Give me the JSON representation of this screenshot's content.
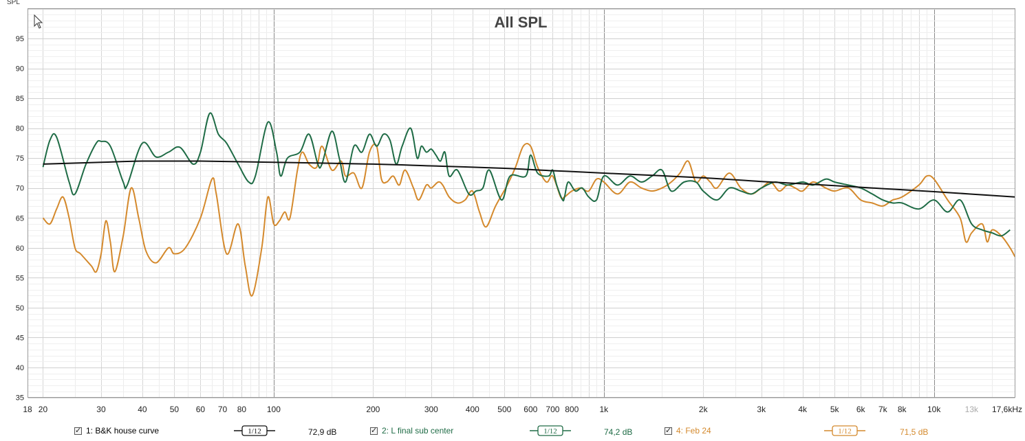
{
  "chart_data": {
    "type": "line",
    "title": "All SPL",
    "ylabel": "SPL",
    "x_unit_label": "17,6kHz",
    "xscale": "log",
    "xlim": [
      18,
      17600
    ],
    "ylim": [
      35,
      100
    ],
    "grid": true,
    "y_ticks": [
      35,
      40,
      45,
      50,
      55,
      60,
      65,
      70,
      75,
      80,
      85,
      90,
      95
    ],
    "x_ticks": [
      {
        "v": 18,
        "label": "18"
      },
      {
        "v": 20,
        "label": "20"
      },
      {
        "v": 30,
        "label": "30"
      },
      {
        "v": 40,
        "label": "40"
      },
      {
        "v": 50,
        "label": "50"
      },
      {
        "v": 60,
        "label": "60"
      },
      {
        "v": 70,
        "label": "70"
      },
      {
        "v": 80,
        "label": "80"
      },
      {
        "v": 100,
        "label": "100"
      },
      {
        "v": 200,
        "label": "200"
      },
      {
        "v": 300,
        "label": "300"
      },
      {
        "v": 400,
        "label": "400"
      },
      {
        "v": 500,
        "label": "500"
      },
      {
        "v": 600,
        "label": "600"
      },
      {
        "v": 700,
        "label": "700"
      },
      {
        "v": 800,
        "label": "800"
      },
      {
        "v": 1000,
        "label": "1k"
      },
      {
        "v": 2000,
        "label": "2k"
      },
      {
        "v": 3000,
        "label": "3k"
      },
      {
        "v": 4000,
        "label": "4k"
      },
      {
        "v": 5000,
        "label": "5k"
      },
      {
        "v": 6000,
        "label": "6k"
      },
      {
        "v": 7000,
        "label": "7k"
      },
      {
        "v": 8000,
        "label": "8k"
      },
      {
        "v": 10000,
        "label": "10k"
      },
      {
        "v": 13000,
        "label": "13k",
        "faint": true
      }
    ],
    "series": [
      {
        "name": "1: B&K house curve",
        "color": "#111111",
        "smoothing": "1/12",
        "level": "72,9 dB",
        "points": [
          [
            20,
            74
          ],
          [
            30,
            74.3
          ],
          [
            40,
            74.5
          ],
          [
            60,
            74.5
          ],
          [
            100,
            74.3
          ],
          [
            200,
            74
          ],
          [
            300,
            73.7
          ],
          [
            500,
            73.3
          ],
          [
            700,
            72.9
          ],
          [
            1000,
            72.5
          ],
          [
            2000,
            71.7
          ],
          [
            3000,
            71.1
          ],
          [
            5000,
            70.4
          ],
          [
            7000,
            69.9
          ],
          [
            10000,
            69.4
          ],
          [
            17600,
            68.5
          ]
        ]
      },
      {
        "name": "2: L final  sub center",
        "color": "#1e6b45",
        "smoothing": "1/12",
        "level": "74,2 dB",
        "points": [
          [
            20,
            73.5
          ],
          [
            21,
            78
          ],
          [
            22,
            78.5
          ],
          [
            24,
            71
          ],
          [
            25,
            69
          ],
          [
            27,
            74
          ],
          [
            29,
            77.5
          ],
          [
            30,
            77.8
          ],
          [
            32,
            77
          ],
          [
            35,
            71
          ],
          [
            36,
            70.5
          ],
          [
            40,
            77.5
          ],
          [
            44,
            75.2
          ],
          [
            48,
            76
          ],
          [
            52,
            76.8
          ],
          [
            57,
            74
          ],
          [
            60,
            76
          ],
          [
            64,
            82.5
          ],
          [
            68,
            79
          ],
          [
            72,
            77.5
          ],
          [
            78,
            74
          ],
          [
            84,
            71
          ],
          [
            88,
            72
          ],
          [
            96,
            81
          ],
          [
            102,
            76
          ],
          [
            105,
            72
          ],
          [
            110,
            75
          ],
          [
            120,
            76
          ],
          [
            128,
            79
          ],
          [
            136,
            74
          ],
          [
            140,
            74
          ],
          [
            150,
            79.5
          ],
          [
            158,
            75
          ],
          [
            165,
            71
          ],
          [
            175,
            77
          ],
          [
            185,
            76
          ],
          [
            195,
            79
          ],
          [
            205,
            77
          ],
          [
            215,
            79
          ],
          [
            225,
            78
          ],
          [
            235,
            74
          ],
          [
            245,
            77
          ],
          [
            260,
            80
          ],
          [
            272,
            75
          ],
          [
            280,
            77
          ],
          [
            290,
            76
          ],
          [
            300,
            76.5
          ],
          [
            310,
            75.5
          ],
          [
            320,
            74.5
          ],
          [
            330,
            76
          ],
          [
            340,
            72
          ],
          [
            360,
            73
          ],
          [
            390,
            69
          ],
          [
            410,
            69.5
          ],
          [
            430,
            70
          ],
          [
            450,
            73
          ],
          [
            490,
            68
          ],
          [
            520,
            72
          ],
          [
            580,
            72
          ],
          [
            600,
            75.5
          ],
          [
            630,
            72.5
          ],
          [
            680,
            72
          ],
          [
            700,
            73
          ],
          [
            720,
            70.5
          ],
          [
            750,
            68
          ],
          [
            760,
            68.5
          ],
          [
            780,
            71
          ],
          [
            820,
            69.5
          ],
          [
            860,
            70
          ],
          [
            900,
            68.5
          ],
          [
            950,
            68
          ],
          [
            1000,
            72
          ],
          [
            1100,
            70.5
          ],
          [
            1200,
            72
          ],
          [
            1300,
            71
          ],
          [
            1400,
            72
          ],
          [
            1500,
            73
          ],
          [
            1600,
            69.5
          ],
          [
            1750,
            71
          ],
          [
            1900,
            71
          ],
          [
            2000,
            69.5
          ],
          [
            2200,
            68
          ],
          [
            2400,
            70
          ],
          [
            2600,
            69.5
          ],
          [
            2800,
            69
          ],
          [
            3000,
            70
          ],
          [
            3300,
            71
          ],
          [
            3600,
            70.5
          ],
          [
            4000,
            71
          ],
          [
            4300,
            70.5
          ],
          [
            4700,
            71.5
          ],
          [
            5000,
            71
          ],
          [
            5500,
            70.5
          ],
          [
            6000,
            70
          ],
          [
            6500,
            69
          ],
          [
            7000,
            68
          ],
          [
            7500,
            67.5
          ],
          [
            8000,
            67.5
          ],
          [
            9000,
            66.5
          ],
          [
            10000,
            68
          ],
          [
            11000,
            66
          ],
          [
            12000,
            68
          ],
          [
            13000,
            64
          ],
          [
            14000,
            63
          ],
          [
            15000,
            62.5
          ],
          [
            16000,
            62
          ],
          [
            17000,
            63
          ]
        ]
      },
      {
        "name": "4: Feb 24",
        "color": "#d4892c",
        "smoothing": "1/12",
        "level": "71,5 dB",
        "points": [
          [
            20,
            65
          ],
          [
            21,
            64
          ],
          [
            22,
            66.5
          ],
          [
            23,
            68.5
          ],
          [
            24,
            65
          ],
          [
            25,
            60
          ],
          [
            26,
            59
          ],
          [
            28,
            57
          ],
          [
            29,
            56
          ],
          [
            30,
            59
          ],
          [
            31,
            64.5
          ],
          [
            32,
            61
          ],
          [
            33,
            56
          ],
          [
            35,
            62
          ],
          [
            37,
            70
          ],
          [
            39,
            65
          ],
          [
            41,
            59.5
          ],
          [
            44,
            57.5
          ],
          [
            48,
            60
          ],
          [
            50,
            59
          ],
          [
            54,
            60
          ],
          [
            60,
            65
          ],
          [
            65,
            71.5
          ],
          [
            67,
            69
          ],
          [
            72,
            59
          ],
          [
            78,
            64
          ],
          [
            82,
            57
          ],
          [
            86,
            52
          ],
          [
            92,
            60
          ],
          [
            96,
            68.5
          ],
          [
            100,
            64
          ],
          [
            104,
            64.5
          ],
          [
            108,
            66
          ],
          [
            112,
            65
          ],
          [
            118,
            73
          ],
          [
            122,
            76
          ],
          [
            128,
            74
          ],
          [
            135,
            73.5
          ],
          [
            140,
            77
          ],
          [
            150,
            73
          ],
          [
            160,
            74.5
          ],
          [
            165,
            72
          ],
          [
            175,
            72.5
          ],
          [
            185,
            70
          ],
          [
            195,
            76
          ],
          [
            205,
            77
          ],
          [
            212,
            71.5
          ],
          [
            220,
            71
          ],
          [
            230,
            72
          ],
          [
            240,
            70.5
          ],
          [
            250,
            73
          ],
          [
            265,
            70
          ],
          [
            275,
            68
          ],
          [
            290,
            70.5
          ],
          [
            300,
            70
          ],
          [
            315,
            71
          ],
          [
            325,
            70.5
          ],
          [
            340,
            68.5
          ],
          [
            360,
            67.5
          ],
          [
            380,
            68
          ],
          [
            400,
            69.5
          ],
          [
            420,
            66
          ],
          [
            440,
            63.5
          ],
          [
            470,
            67
          ],
          [
            510,
            70.5
          ],
          [
            540,
            73.5
          ],
          [
            570,
            77
          ],
          [
            600,
            77
          ],
          [
            630,
            73.5
          ],
          [
            670,
            71
          ],
          [
            700,
            72
          ],
          [
            740,
            68.5
          ],
          [
            760,
            68.5
          ],
          [
            800,
            69.5
          ],
          [
            850,
            70
          ],
          [
            900,
            69.5
          ],
          [
            950,
            71.5
          ],
          [
            1000,
            71
          ],
          [
            1100,
            69
          ],
          [
            1200,
            71
          ],
          [
            1300,
            70
          ],
          [
            1400,
            69.5
          ],
          [
            1500,
            70
          ],
          [
            1600,
            71
          ],
          [
            1700,
            72.5
          ],
          [
            1800,
            74.5
          ],
          [
            1900,
            71
          ],
          [
            2000,
            72
          ],
          [
            2100,
            71
          ],
          [
            2200,
            70
          ],
          [
            2400,
            72.5
          ],
          [
            2600,
            70
          ],
          [
            2800,
            69
          ],
          [
            3000,
            70
          ],
          [
            3200,
            71
          ],
          [
            3400,
            69.5
          ],
          [
            3600,
            70.5
          ],
          [
            3800,
            70
          ],
          [
            4000,
            69.5
          ],
          [
            4300,
            71
          ],
          [
            4700,
            70
          ],
          [
            5000,
            69.5
          ],
          [
            5500,
            70
          ],
          [
            6000,
            68
          ],
          [
            6500,
            67.5
          ],
          [
            7000,
            67
          ],
          [
            7500,
            68
          ],
          [
            8000,
            68.5
          ],
          [
            9000,
            70.5
          ],
          [
            9500,
            72
          ],
          [
            10000,
            71.5
          ],
          [
            11000,
            68
          ],
          [
            12000,
            65
          ],
          [
            12500,
            61
          ],
          [
            13000,
            62.5
          ],
          [
            14000,
            64
          ],
          [
            14500,
            61
          ],
          [
            15000,
            63
          ],
          [
            16000,
            62
          ],
          [
            17000,
            60
          ],
          [
            17600,
            58.5
          ]
        ]
      }
    ]
  }
}
